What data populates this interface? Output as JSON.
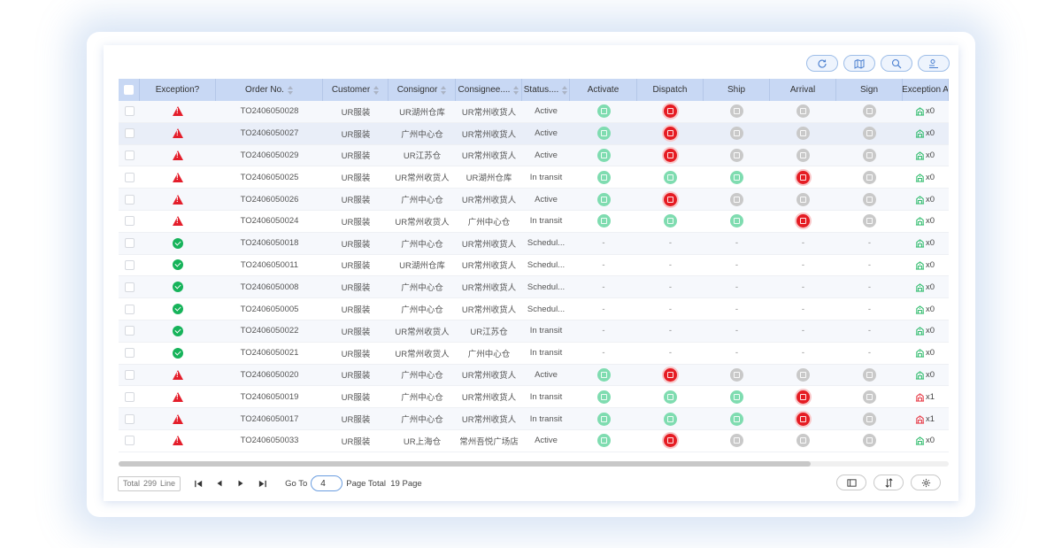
{
  "columns": [
    {
      "key": "check",
      "label": "",
      "w": 24
    },
    {
      "key": "exception",
      "label": "Exception?",
      "w": 86
    },
    {
      "key": "order",
      "label": "Order No.",
      "w": 121,
      "sort": true
    },
    {
      "key": "customer",
      "label": "Customer",
      "w": 74,
      "sort": true
    },
    {
      "key": "consignor",
      "label": "Consignor",
      "w": 76,
      "sort": true
    },
    {
      "key": "consignee",
      "label": "Consignee....",
      "w": 75,
      "sort": true
    },
    {
      "key": "status",
      "label": "Status....",
      "w": 54,
      "sort": true
    },
    {
      "key": "activate",
      "label": "Activate",
      "w": 76
    },
    {
      "key": "dispatch",
      "label": "Dispatch",
      "w": 75
    },
    {
      "key": "ship",
      "label": "Ship",
      "w": 75
    },
    {
      "key": "arrival",
      "label": "Arrival",
      "w": 75
    },
    {
      "key": "sign",
      "label": "Sign",
      "w": 75
    },
    {
      "key": "excabn",
      "label": "Exception A",
      "w": 52
    }
  ],
  "rows": [
    {
      "exception": "warn",
      "order": "TO2406050028",
      "customer": "UR服装",
      "consignor": "UR湖州仓库",
      "consignee": "UR常州收货人",
      "status": "Active",
      "activate": "green",
      "dispatch": "red",
      "ship": "gray",
      "arrival": "gray",
      "sign": "gray",
      "exc_count": "x0",
      "exc_color": "#16b35a"
    },
    {
      "exception": "warn",
      "order": "TO2406050027",
      "customer": "UR服装",
      "consignor": "广州中心仓",
      "consignee": "UR常州收货人",
      "status": "Active",
      "activate": "green",
      "dispatch": "red",
      "ship": "gray",
      "arrival": "gray",
      "sign": "gray",
      "exc_count": "x0",
      "exc_color": "#16b35a"
    },
    {
      "exception": "warn",
      "order": "TO2406050029",
      "customer": "UR服装",
      "consignor": "UR江苏仓",
      "consignee": "UR常州收货人",
      "status": "Active",
      "activate": "green",
      "dispatch": "red",
      "ship": "gray",
      "arrival": "gray",
      "sign": "gray",
      "exc_count": "x0",
      "exc_color": "#16b35a"
    },
    {
      "exception": "warn",
      "order": "TO2406050025",
      "customer": "UR服装",
      "consignor": "UR常州收货人",
      "consignee": "UR湖州仓库",
      "status": "In transit",
      "activate": "green",
      "dispatch": "green",
      "ship": "green",
      "arrival": "red",
      "sign": "gray",
      "exc_count": "x0",
      "exc_color": "#16b35a"
    },
    {
      "exception": "warn",
      "order": "TO2406050026",
      "customer": "UR服装",
      "consignor": "广州中心仓",
      "consignee": "UR常州收货人",
      "status": "Active",
      "activate": "green",
      "dispatch": "red",
      "ship": "gray",
      "arrival": "gray",
      "sign": "gray",
      "exc_count": "x0",
      "exc_color": "#16b35a"
    },
    {
      "exception": "warn",
      "order": "TO2406050024",
      "customer": "UR服装",
      "consignor": "UR常州收货人",
      "consignee": "广州中心仓",
      "status": "In transit",
      "activate": "green",
      "dispatch": "green",
      "ship": "green",
      "arrival": "red",
      "sign": "gray",
      "exc_count": "x0",
      "exc_color": "#16b35a"
    },
    {
      "exception": "ok",
      "order": "TO2406050018",
      "customer": "UR服装",
      "consignor": "广州中心仓",
      "consignee": "UR常州收货人",
      "status": "Schedul...",
      "activate": "-",
      "dispatch": "-",
      "ship": "-",
      "arrival": "-",
      "sign": "-",
      "exc_count": "x0",
      "exc_color": "#16b35a"
    },
    {
      "exception": "ok",
      "order": "TO2406050011",
      "customer": "UR服装",
      "consignor": "UR湖州仓库",
      "consignee": "UR常州收货人",
      "status": "Schedul...",
      "activate": "-",
      "dispatch": "-",
      "ship": "-",
      "arrival": "-",
      "sign": "-",
      "exc_count": "x0",
      "exc_color": "#16b35a"
    },
    {
      "exception": "ok",
      "order": "TO2406050008",
      "customer": "UR服装",
      "consignor": "广州中心仓",
      "consignee": "UR常州收货人",
      "status": "Schedul...",
      "activate": "-",
      "dispatch": "-",
      "ship": "-",
      "arrival": "-",
      "sign": "-",
      "exc_count": "x0",
      "exc_color": "#16b35a"
    },
    {
      "exception": "ok",
      "order": "TO2406050005",
      "customer": "UR服装",
      "consignor": "广州中心仓",
      "consignee": "UR常州收货人",
      "status": "Schedul...",
      "activate": "-",
      "dispatch": "-",
      "ship": "-",
      "arrival": "-",
      "sign": "-",
      "exc_count": "x0",
      "exc_color": "#16b35a"
    },
    {
      "exception": "ok",
      "order": "TO2406050022",
      "customer": "UR服装",
      "consignor": "UR常州收货人",
      "consignee": "UR江苏仓",
      "status": "In transit",
      "activate": "-",
      "dispatch": "-",
      "ship": "-",
      "arrival": "-",
      "sign": "-",
      "exc_count": "x0",
      "exc_color": "#16b35a"
    },
    {
      "exception": "ok",
      "order": "TO2406050021",
      "customer": "UR服装",
      "consignor": "UR常州收货人",
      "consignee": "广州中心仓",
      "status": "In transit",
      "activate": "-",
      "dispatch": "-",
      "ship": "-",
      "arrival": "-",
      "sign": "-",
      "exc_count": "x0",
      "exc_color": "#16b35a"
    },
    {
      "exception": "warn",
      "order": "TO2406050020",
      "customer": "UR服装",
      "consignor": "广州中心仓",
      "consignee": "UR常州收货人",
      "status": "Active",
      "activate": "green",
      "dispatch": "red",
      "ship": "gray",
      "arrival": "gray",
      "sign": "gray",
      "exc_count": "x0",
      "exc_color": "#16b35a"
    },
    {
      "exception": "warn",
      "order": "TO2406050019",
      "customer": "UR服装",
      "consignor": "广州中心仓",
      "consignee": "UR常州收货人",
      "status": "In transit",
      "activate": "green",
      "dispatch": "green",
      "ship": "green",
      "arrival": "red",
      "sign": "gray",
      "exc_count": "x1",
      "exc_color": "#e41e2b"
    },
    {
      "exception": "warn",
      "order": "TO2406050017",
      "customer": "UR服装",
      "consignor": "广州中心仓",
      "consignee": "UR常州收货人",
      "status": "In transit",
      "activate": "green",
      "dispatch": "green",
      "ship": "green",
      "arrival": "red",
      "sign": "gray",
      "exc_count": "x1",
      "exc_color": "#e41e2b"
    },
    {
      "exception": "warn",
      "order": "TO2406050033",
      "customer": "UR服装",
      "consignor": "UR上海仓",
      "consignee": "常州吾悦广场店",
      "status": "Active",
      "activate": "green",
      "dispatch": "red",
      "ship": "gray",
      "arrival": "gray",
      "sign": "gray",
      "exc_count": "x0",
      "exc_color": "#16b35a"
    }
  ],
  "footer": {
    "total_label": "Total",
    "total_value": "299",
    "total_unit": "Line",
    "goto_label": "Go To",
    "goto_value": "4",
    "page_total_label": "Page Total",
    "page_total_value": "19",
    "page_total_unit": "Page"
  },
  "toolbar": {
    "icons": [
      "refresh-icon",
      "map-icon",
      "search-icon",
      "filter-list-icon"
    ]
  },
  "colors": {
    "header_bg": "#c8d8f4",
    "green": "#7fdcb0",
    "red": "#e51c23",
    "gray": "#c9c9c9",
    "accent": "#6a9de0"
  }
}
